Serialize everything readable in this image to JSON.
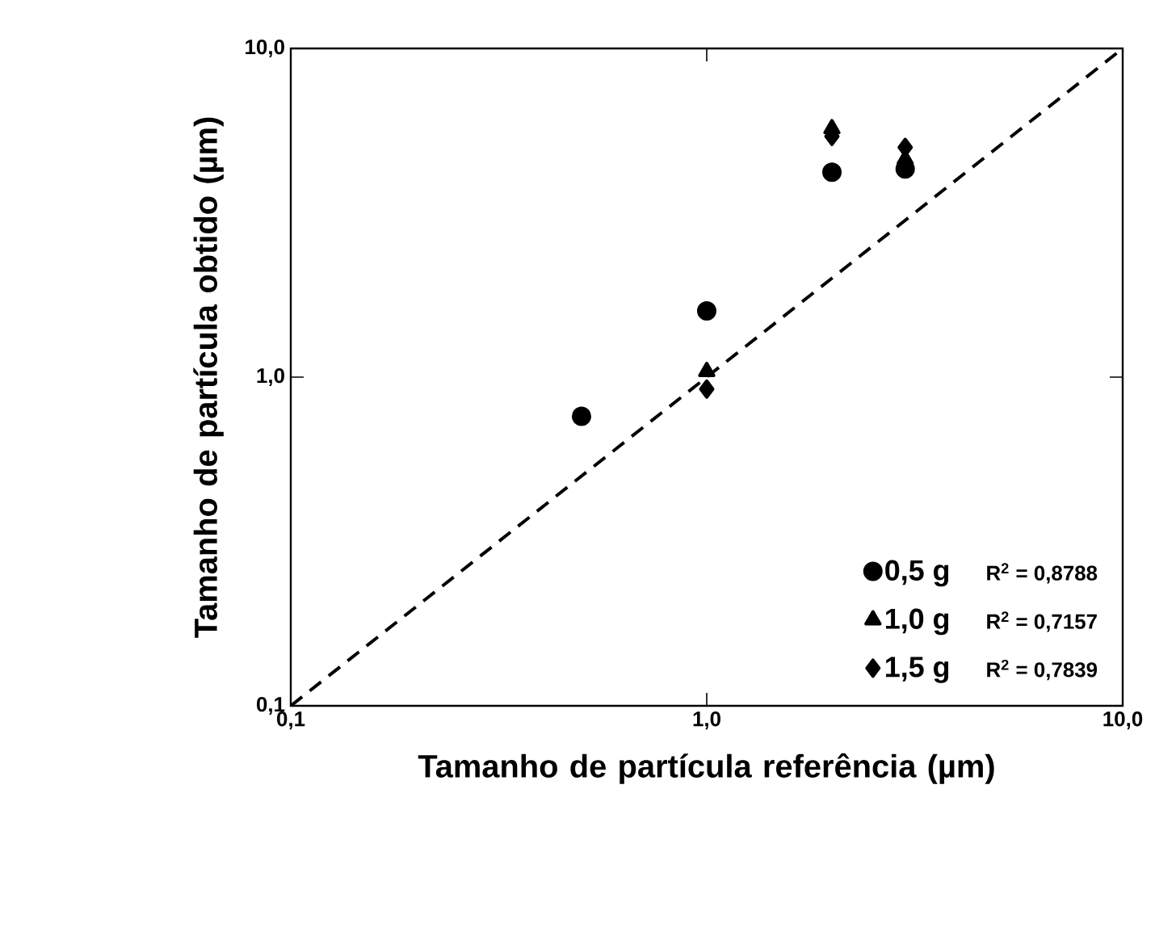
{
  "chart_data": {
    "type": "scatter",
    "xlabel": "Tamanho de partícula referência (µm)",
    "ylabel": "Tamanho de partícula obtido (µm)",
    "log": "xy",
    "xlim": [
      0.1,
      10
    ],
    "ylim": [
      0.1,
      10
    ],
    "xticks": [
      {
        "value": 0.1,
        "label": "0,1"
      },
      {
        "value": 1,
        "label": "1,0"
      },
      {
        "value": 10,
        "label": "10,0"
      }
    ],
    "yticks": [
      {
        "value": 0.1,
        "label": "0,1"
      },
      {
        "value": 1,
        "label": "1,0"
      },
      {
        "value": 10,
        "label": "10,0"
      }
    ],
    "grid": false,
    "legend": "bottom right",
    "annotations": [
      "R$^{2}$ = 0,8788",
      "R$^{2}$ = 0,7157",
      "R$^{2}$ = 0,7839"
    ],
    "series": [
      {
        "name": "0,5 g",
        "color": "#000000",
        "marker": "circle",
        "x": [
          0.5,
          1,
          2,
          3
        ],
        "values": [
          0.76,
          1.59,
          4.2,
          4.3
        ]
      },
      {
        "name": "1,0 g",
        "color": "#000000",
        "marker": "triangle",
        "x": [
          1,
          2,
          3
        ],
        "values": [
          1.04,
          5.7,
          4.6
        ]
      },
      {
        "name": "1,5 g",
        "color": "#000000",
        "marker": "diamond",
        "x": [
          1,
          2,
          3
        ],
        "values": [
          0.92,
          5.4,
          5.0
        ]
      },
      {
        "type": "line",
        "color": "#000000",
        "marker": "none",
        "line_style": "dashed",
        "x": [
          0.1,
          10
        ],
        "values": [
          0.1,
          10
        ]
      }
    ]
  }
}
